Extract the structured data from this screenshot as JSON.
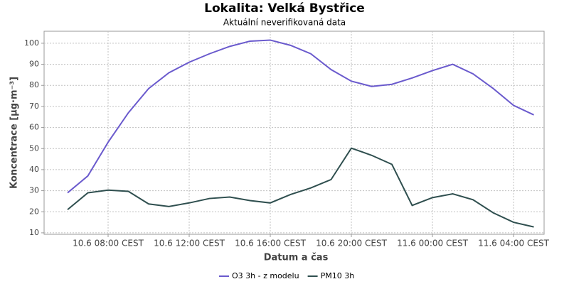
{
  "chart_data": {
    "type": "line",
    "title": "Lokalita: Velká Bystřice",
    "subtitle": "Aktuální neverifikovaná data",
    "x_label": "Datum a čas",
    "y_label": "Koncentrace [µg·m⁻³]",
    "categories": [
      null,
      null,
      "10.6 08:00 CEST",
      null,
      null,
      null,
      "10.6 12:00 CEST",
      null,
      null,
      null,
      "10.6 16:00 CEST",
      null,
      null,
      null,
      "10.6 20:00 CEST",
      null,
      null,
      null,
      "11.6 00:00 CEST",
      null,
      null,
      null,
      "11.6 04:00 CEST",
      null
    ],
    "series": [
      {
        "name": "O3 3h - z modelu",
        "color": "#6a5acd",
        "values": [
          29,
          37,
          53,
          67,
          78.5,
          86,
          91,
          95,
          98.5,
          101,
          101.5,
          99,
          95,
          87.5,
          82,
          79.5,
          80.5,
          83.5,
          87,
          90,
          85.5,
          78.5,
          70.5,
          66
        ]
      },
      {
        "name": "PM10 3h",
        "color": "#2f4f4f",
        "values": [
          21,
          29,
          30.3,
          29.7,
          23.7,
          22.5,
          24.2,
          26.3,
          27,
          25.3,
          24.2,
          28.2,
          31.3,
          35.3,
          50.2,
          46.8,
          42.5,
          23,
          26.7,
          28.5,
          25.7,
          19.5,
          15,
          12.8
        ]
      }
    ],
    "ylim": [
      9.3,
      105.7
    ],
    "yticks": [
      10,
      20,
      30,
      40,
      50,
      60,
      70,
      80,
      90,
      100
    ],
    "grid": true,
    "legend": "bottom"
  }
}
